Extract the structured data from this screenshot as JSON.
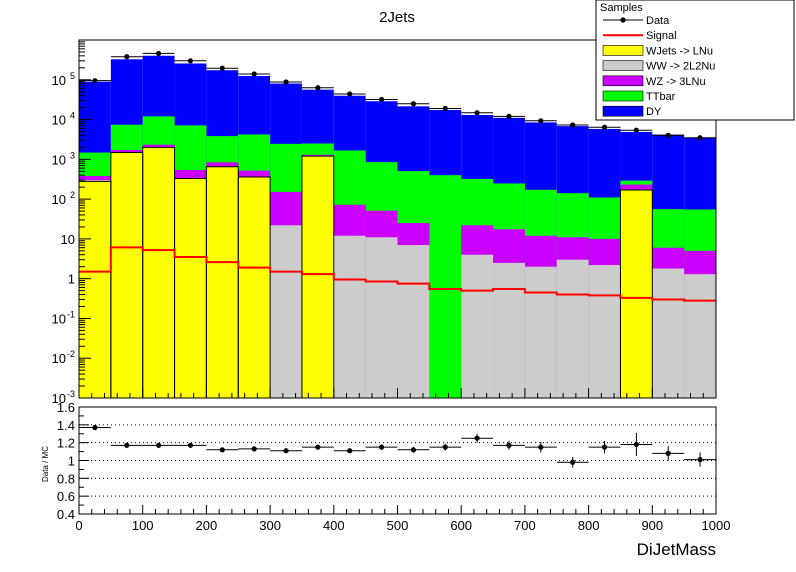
{
  "chart_data": [
    {
      "type": "stacked-histogram",
      "title": "2Jets",
      "xlabel": "",
      "ylabel": "",
      "log_y": true,
      "xlim": [
        0,
        1000
      ],
      "ylim": [
        0.001,
        1000000
      ],
      "bin_edges": [
        0,
        50,
        100,
        150,
        200,
        250,
        300,
        350,
        400,
        450,
        500,
        550,
        600,
        650,
        700,
        750,
        800,
        850,
        900,
        950,
        1000
      ],
      "y_ticks": [
        {
          "v": 0.001,
          "label": "10",
          "exp": "-3"
        },
        {
          "v": 0.01,
          "label": "10",
          "exp": "-2"
        },
        {
          "v": 0.1,
          "label": "10",
          "exp": "-1"
        },
        {
          "v": 1,
          "label": "1",
          "exp": ""
        },
        {
          "v": 10,
          "label": "10",
          "exp": ""
        },
        {
          "v": 100,
          "label": "10",
          "exp": "2"
        },
        {
          "v": 1000,
          "label": "10",
          "exp": "3"
        },
        {
          "v": 10000,
          "label": "10",
          "exp": "4"
        },
        {
          "v": 100000,
          "label": "10",
          "exp": "5"
        }
      ],
      "legend_title": "Samples",
      "legend_position": "top-right",
      "stack": [
        {
          "name": "WJets -> LNu",
          "color": "#ffff00",
          "values": [
            280,
            1480,
            2000,
            330,
            650,
            360,
            0,
            1200,
            0,
            0,
            0,
            0,
            0,
            0,
            0,
            0,
            0,
            170,
            0,
            0
          ]
        },
        {
          "name": "WW -> 2L2Nu",
          "color": "#cccccc",
          "values": [
            20,
            30,
            30,
            10,
            10,
            10,
            22,
            20,
            12,
            11,
            7,
            0,
            4,
            2.5,
            2,
            3,
            2.2,
            2,
            1.8,
            1.3
          ]
        },
        {
          "name": "WZ -> 3LNu",
          "color": "#cc00ff",
          "values": [
            80,
            200,
            300,
            200,
            180,
            150,
            130,
            80,
            60,
            40,
            18,
            0,
            18,
            15,
            10,
            8,
            7.8,
            60,
            4.2,
            3.7
          ]
        },
        {
          "name": "TTbar",
          "color": "#00ff00",
          "values": [
            1100,
            5700,
            9700,
            6600,
            3000,
            3700,
            2300,
            1200,
            1600,
            800,
            480,
            400,
            300,
            230,
            160,
            130,
            100,
            60,
            50,
            50
          ]
        },
        {
          "name": "DY",
          "color": "#0000ff",
          "values": [
            88000,
            320000,
            390000,
            250000,
            170000,
            120000,
            78000,
            54000,
            38000,
            28000,
            21000,
            17000,
            12700,
            10800,
            8300,
            6700,
            5700,
            4600,
            4140,
            3400
          ]
        }
      ],
      "signal": {
        "name": "Signal",
        "color": "#ff0000",
        "values": [
          1.5,
          6.1,
          5.2,
          3.5,
          2.6,
          1.9,
          1.5,
          1.3,
          0.95,
          0.85,
          0.75,
          0.55,
          0.5,
          0.55,
          0.45,
          0.4,
          0.38,
          0.33,
          0.3,
          0.28
        ]
      },
      "data": {
        "name": "Data",
        "values": [
          95000,
          380000,
          460000,
          300000,
          195000,
          140000,
          88000,
          63000,
          44000,
          32000,
          25000,
          19000,
          14800,
          12000,
          9300,
          7300,
          6400,
          5400,
          4000,
          3500
        ]
      }
    },
    {
      "type": "scatter",
      "ylabel": "Data / MC",
      "xlabel": "DiJetMass",
      "xlim": [
        0,
        1000
      ],
      "ylim": [
        0.4,
        1.6
      ],
      "x_ticks": [
        0,
        100,
        200,
        300,
        400,
        500,
        600,
        700,
        800,
        900,
        1000
      ],
      "y_ticks": [
        "0.4",
        "0.6",
        "0.8",
        "1",
        "1.2",
        "1.4",
        "1.6"
      ],
      "grid": "dotted",
      "x": [
        25,
        75,
        125,
        175,
        225,
        275,
        325,
        375,
        425,
        475,
        525,
        575,
        625,
        675,
        725,
        775,
        825,
        875,
        925,
        975
      ],
      "y": [
        1.37,
        1.17,
        1.17,
        1.17,
        1.12,
        1.13,
        1.11,
        1.15,
        1.11,
        1.15,
        1.12,
        1.15,
        1.25,
        1.17,
        1.15,
        0.98,
        1.15,
        1.18,
        1.08,
        1.01
      ],
      "err": [
        0.01,
        0.01,
        0.01,
        0.01,
        0.01,
        0.01,
        0.015,
        0.02,
        0.02,
        0.03,
        0.035,
        0.04,
        0.05,
        0.05,
        0.06,
        0.06,
        0.07,
        0.13,
        0.08,
        0.08
      ]
    }
  ]
}
